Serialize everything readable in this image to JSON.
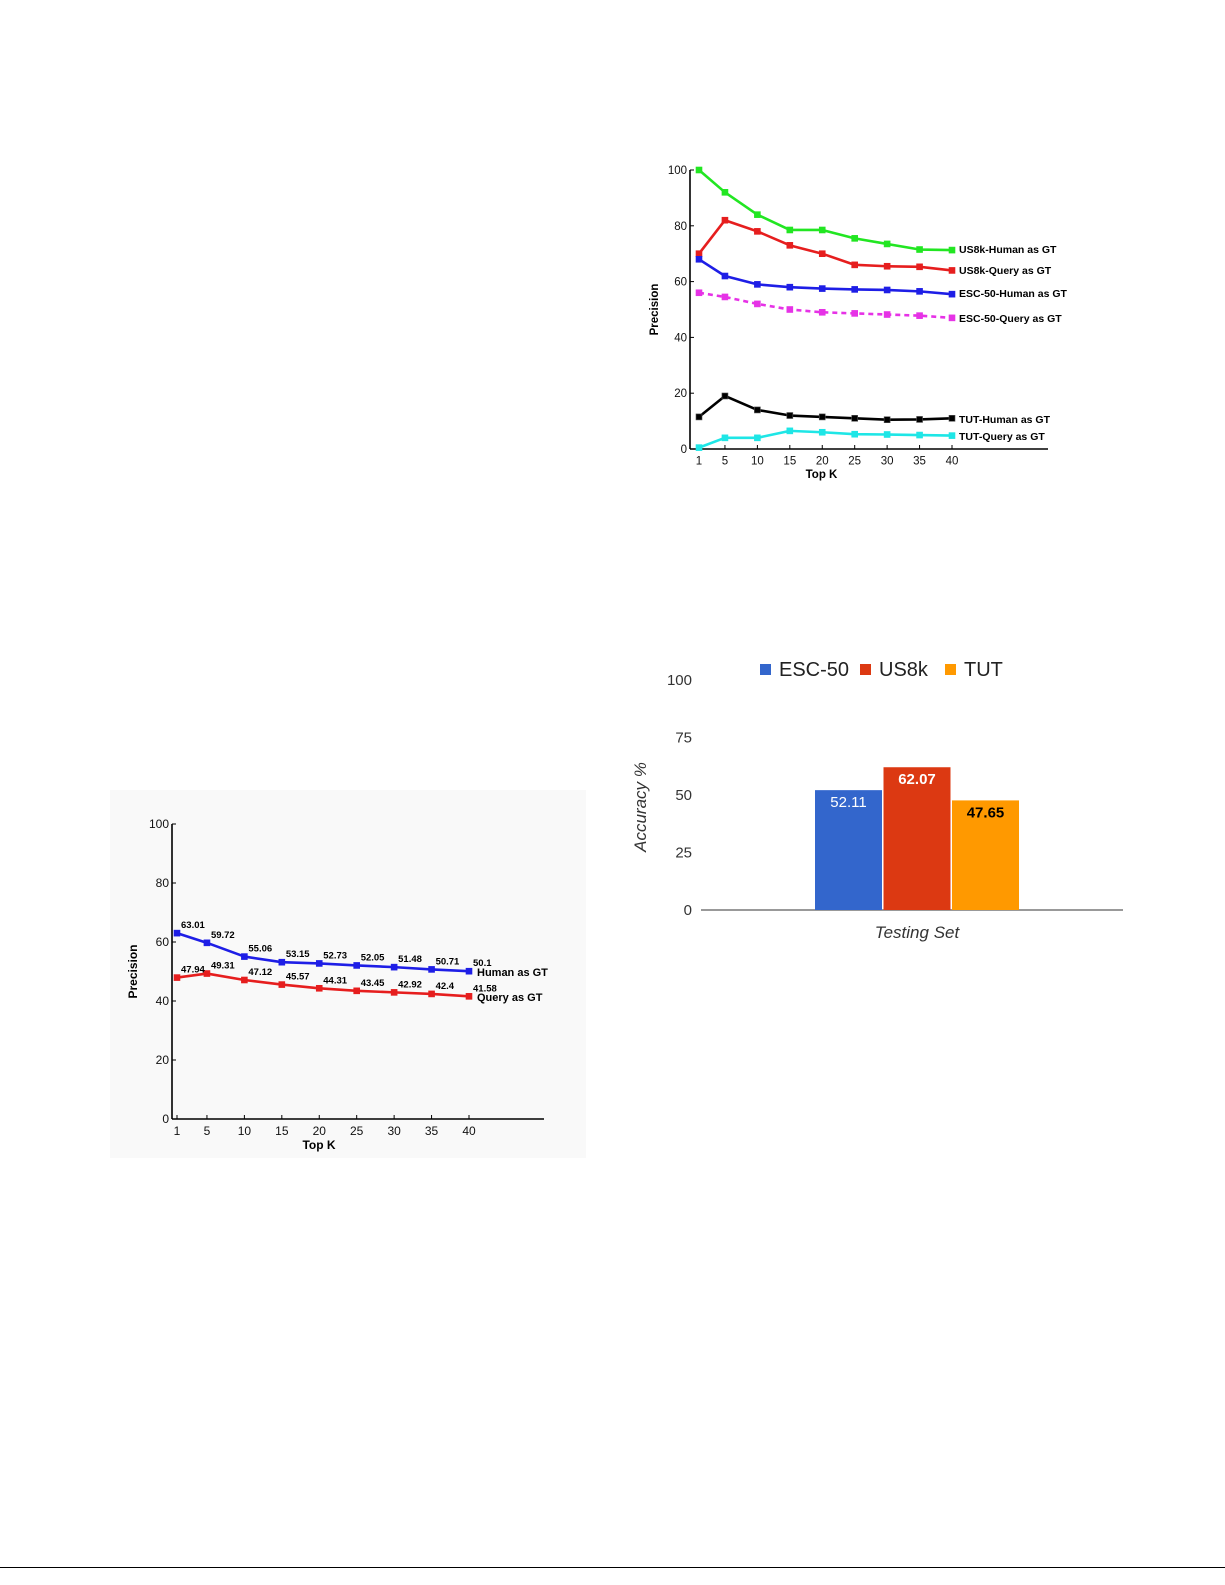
{
  "chart_data": [
    {
      "type": "line",
      "xlabel": "Top K",
      "ylabel": "Precision",
      "x": [
        1,
        5,
        10,
        15,
        20,
        25,
        30,
        35,
        40
      ],
      "ylim": [
        0,
        100
      ],
      "yticks": [
        0,
        20,
        40,
        60,
        80,
        100
      ],
      "legend": "right-of-line-ends",
      "series": [
        {
          "name": "US8k-Human as GT",
          "color": "#22e622",
          "dashed": false,
          "values": [
            100,
            92,
            84,
            78.5,
            78.5,
            75.5,
            73.5,
            71.5,
            71.3
          ]
        },
        {
          "name": "US8k-Query as GT",
          "color": "#e61e1e",
          "dashed": false,
          "values": [
            70,
            82,
            78,
            73,
            70,
            66,
            65.5,
            65.3,
            64
          ]
        },
        {
          "name": "ESC-50-Human as GT",
          "color": "#1e1ee6",
          "dashed": false,
          "values": [
            68,
            62,
            59,
            58,
            57.5,
            57.2,
            57,
            56.5,
            55.5
          ]
        },
        {
          "name": "ESC-50-Query as GT",
          "color": "#e632e6",
          "dashed": true,
          "values": [
            56,
            54.5,
            52,
            50,
            49,
            48.6,
            48.2,
            47.8,
            47
          ]
        },
        {
          "name": "TUT-Human as GT",
          "color": "#000000",
          "dashed": false,
          "values": [
            11.5,
            19,
            14,
            12,
            11.5,
            11,
            10.5,
            10.6,
            11
          ]
        },
        {
          "name": "TUT-Query as GT",
          "color": "#1ee6e6",
          "dashed": false,
          "values": [
            0.5,
            4,
            4,
            6.5,
            6,
            5.3,
            5.2,
            5,
            4.8
          ]
        }
      ]
    },
    {
      "type": "line",
      "xlabel": "Top K",
      "ylabel": "Precision",
      "x": [
        1,
        5,
        10,
        15,
        20,
        25,
        30,
        35,
        40
      ],
      "ylim": [
        0,
        100
      ],
      "yticks": [
        0,
        20,
        40,
        60,
        80,
        100
      ],
      "legend": "right-of-line-ends",
      "series": [
        {
          "name": "Human as GT",
          "color": "#1e1ee6",
          "values": [
            63.01,
            59.72,
            55.06,
            53.15,
            52.73,
            52.05,
            51.48,
            50.71,
            50.1
          ],
          "labels": [
            "63.01",
            "59.72",
            "55.06",
            "53.15",
            "52.73",
            "52.05",
            "51.48",
            "50.71",
            "50.1"
          ]
        },
        {
          "name": "Query as GT",
          "color": "#e61e1e",
          "values": [
            47.94,
            49.31,
            47.12,
            45.57,
            44.31,
            43.45,
            42.92,
            42.4,
            41.58
          ],
          "labels": [
            "47.94",
            "49.31",
            "47.12",
            "45.57",
            "44.31",
            "43.45",
            "42.92",
            "42.4",
            "41.58"
          ]
        }
      ]
    },
    {
      "type": "bar",
      "categories": [
        "Testing Set"
      ],
      "xlabel": "Testing Set",
      "ylabel": "Accuracy %",
      "ylim": [
        0,
        100
      ],
      "yticks": [
        0,
        25,
        50,
        75,
        100
      ],
      "legend": "top-center",
      "series": [
        {
          "name": "ESC-50",
          "color": "#3366cc",
          "values": [
            52.11
          ],
          "label": "52.11",
          "label_color": "#ffffff"
        },
        {
          "name": "US8k",
          "color": "#dc3912",
          "values": [
            62.07
          ],
          "label": "62.07",
          "label_color": "#ffffff"
        },
        {
          "name": "TUT",
          "color": "#ff9900",
          "values": [
            47.65
          ],
          "label": "47.65",
          "label_color": "#000000"
        }
      ]
    }
  ]
}
